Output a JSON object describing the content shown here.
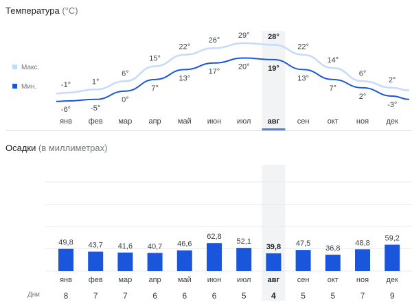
{
  "temperature": {
    "title": "Температура",
    "unit": "(°C)"
  },
  "precipitation": {
    "title": "Осадки",
    "unit": "(в миллиметрах)"
  },
  "days_caption": "Дни",
  "selected_index": 7,
  "colors": {
    "max_line": "#c6dafc",
    "min_line": "#1a56db",
    "bar": "#1a56db",
    "highlight_bg": "#f1f3f4",
    "highlight_bar": "#4285f4",
    "grid": "#e8eaed"
  },
  "chart_data": [
    {
      "type": "line",
      "categories": [
        "янв",
        "фев",
        "мар",
        "апр",
        "май",
        "июн",
        "июл",
        "авг",
        "сен",
        "окт",
        "ноя",
        "дек"
      ],
      "series": [
        {
          "name": "Макс.",
          "values": [
            -1,
            1,
            6,
            15,
            22,
            26,
            29,
            28,
            22,
            14,
            6,
            2
          ]
        },
        {
          "name": "Мин.",
          "values": [
            -6,
            -5,
            0,
            7,
            13,
            17,
            20,
            19,
            13,
            7,
            2,
            -3
          ]
        }
      ],
      "value_labels": {
        "max": [
          "-1°",
          "1°",
          "6°",
          "15°",
          "22°",
          "26°",
          "29°",
          "28°",
          "22°",
          "14°",
          "6°",
          "2°"
        ],
        "min": [
          "-6°",
          "-5°",
          "0°",
          "7°",
          "13°",
          "17°",
          "20°",
          "19°",
          "13°",
          "7°",
          "2°",
          "-3°"
        ]
      },
      "title": "Температура",
      "ylabel": "°C",
      "ylim": [
        -8,
        31
      ],
      "legend": "left"
    },
    {
      "type": "bar",
      "categories": [
        "янв",
        "фев",
        "мар",
        "апр",
        "май",
        "июн",
        "июл",
        "авг",
        "сен",
        "окт",
        "ноя",
        "дек"
      ],
      "values": [
        49.8,
        43.7,
        41.6,
        40.7,
        46.6,
        62.8,
        52.1,
        39.8,
        47.5,
        36.8,
        48.8,
        59.2
      ],
      "value_labels": [
        "49,8",
        "43,7",
        "41,6",
        "40,7",
        "46,6",
        "62,8",
        "52,1",
        "39,8",
        "47,5",
        "36,8",
        "48,8",
        "59,2"
      ],
      "days": [
        8,
        7,
        7,
        6,
        6,
        6,
        5,
        4,
        5,
        5,
        7,
        9
      ],
      "title": "Осадки",
      "ylabel": "мм",
      "ylim": [
        0,
        200
      ],
      "grid": true
    }
  ]
}
